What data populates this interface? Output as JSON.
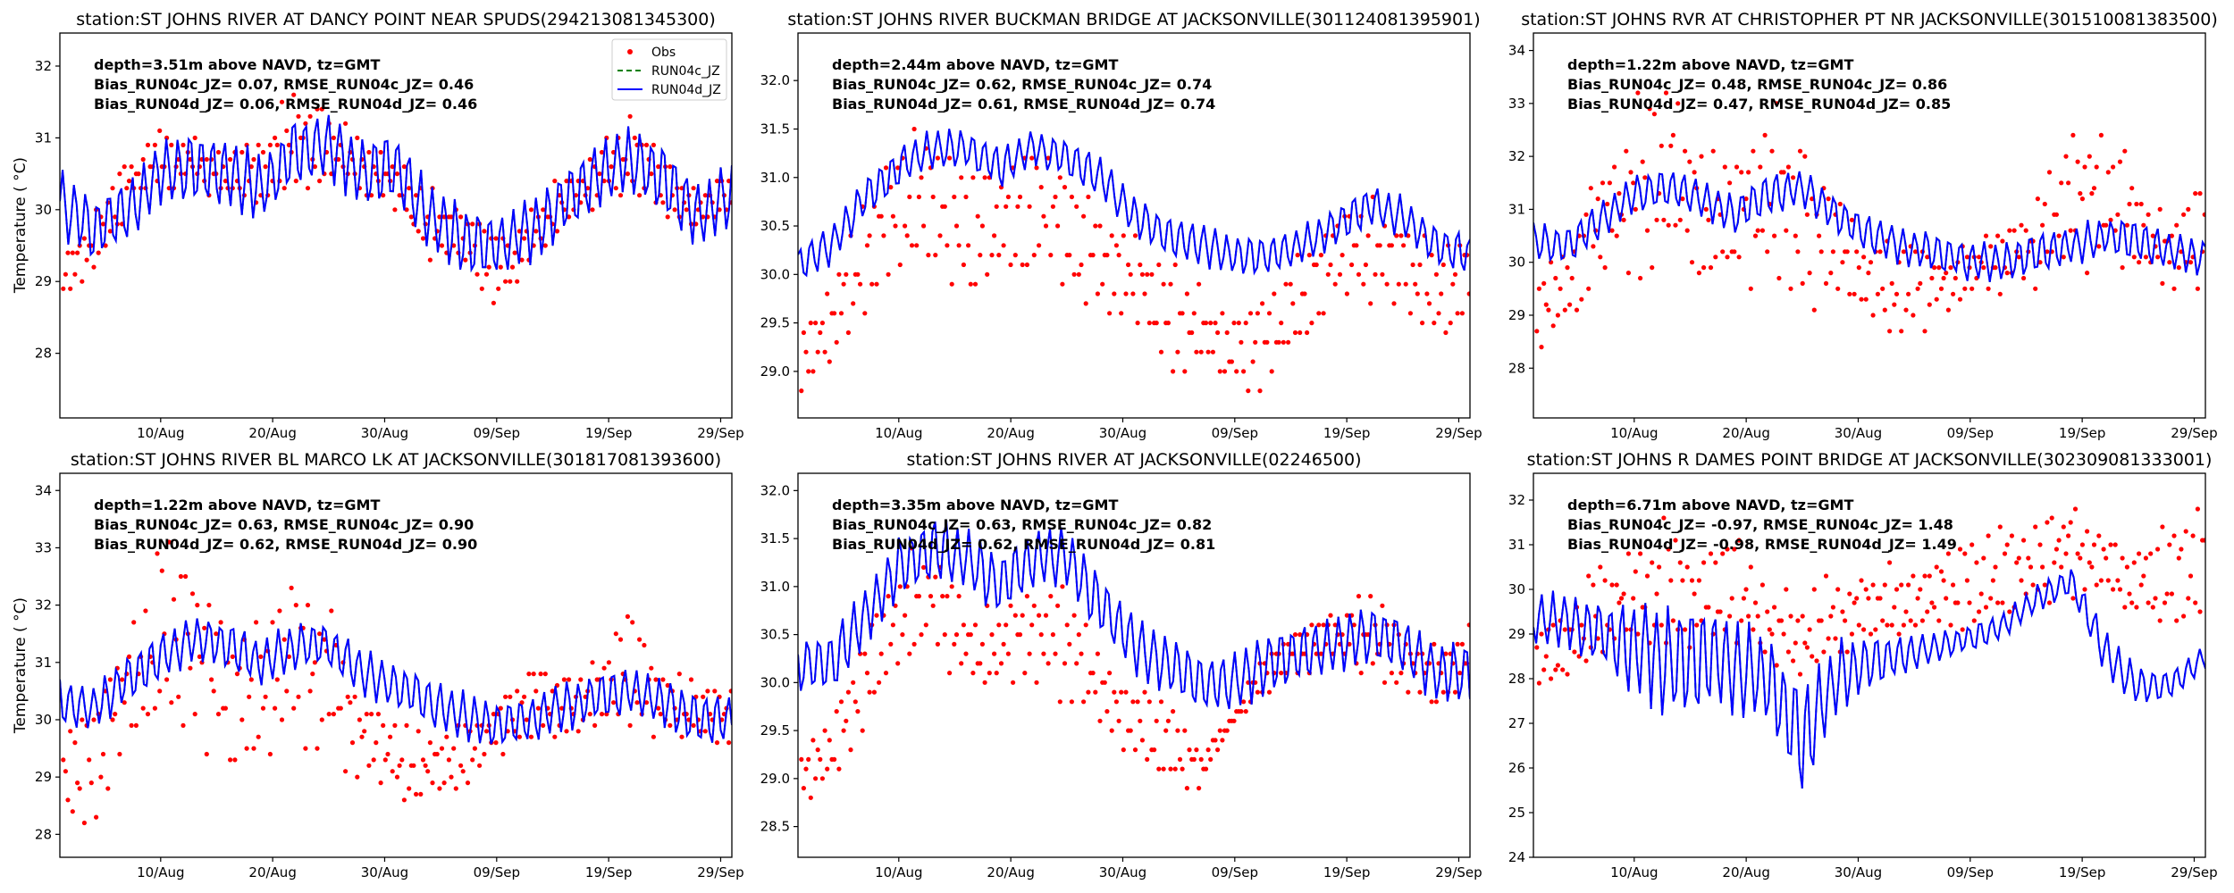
{
  "figure": {
    "x_tick_labels": [
      "10/Aug",
      "20/Aug",
      "30/Aug",
      "09/Sep",
      "19/Sep",
      "29/Sep"
    ],
    "x_tick_days": [
      9,
      19,
      29,
      39,
      49,
      59
    ],
    "x_range_days": [
      0,
      60
    ],
    "x_origin_date": "01/Aug",
    "ylabel": "Temperature ($^\\circ$C)",
    "ylabel_text": "Temperature ( °C)",
    "legend": [
      {
        "label": "Obs",
        "color": "#ff0000",
        "style": "dot"
      },
      {
        "label": "RUN04c_JZ",
        "color": "#008000",
        "style": "dashed"
      },
      {
        "label": "RUN04d_JZ",
        "color": "#0000ff",
        "style": "solid"
      }
    ]
  },
  "chart_data": [
    {
      "type": "line",
      "title": "station:ST JOHNS RIVER AT DANCY POINT NEAR SPUDS(294213081345300)",
      "xlabel": "",
      "ylabel": "Temperature ( °C)",
      "ylim": [
        27.1,
        32.46
      ],
      "yticks": [
        28,
        29,
        30,
        31,
        32
      ],
      "ytick_labels": [
        "28",
        "29",
        "30",
        "31",
        "32"
      ],
      "annotation": [
        "depth=3.51m above NAVD, tz=GMT",
        "Bias_RUN04c_JZ=  0.07, RMSE_RUN04c_JZ=  0.46",
        "Bias_RUN04d_JZ=  0.06, RMSE_RUN04d_JZ=  0.46"
      ],
      "legend_shown": true,
      "legend_position": "top-right",
      "series": [
        {
          "name": "RUN04d_JZ",
          "daily_mean_every_3_days": [
            30.1,
            29.7,
            30.0,
            30.5,
            30.6,
            30.5,
            30.3,
            30.8,
            30.9,
            30.5,
            30.6,
            29.9,
            29.6,
            29.5,
            29.7,
            30.1,
            30.5,
            30.7,
            30.4,
            29.9,
            30.2
          ],
          "tidal_amplitude": 0.45
        },
        {
          "name": "RUN04c_JZ",
          "same_as": "RUN04d_JZ"
        },
        {
          "name": "Obs",
          "daily_min_every_3_days": [
            28.7,
            29.1,
            29.9,
            30.2,
            30.3,
            30.0,
            30.1,
            30.3,
            30.3,
            30.2,
            29.9,
            29.3,
            29.2,
            28.6,
            29.2,
            29.6,
            30.1,
            30.2,
            29.8,
            29.6,
            29.9
          ],
          "daily_max_every_3_days": [
            29.4,
            29.9,
            30.8,
            31.2,
            31.0,
            30.8,
            31.0,
            31.8,
            31.4,
            31.0,
            30.8,
            30.3,
            30.0,
            29.7,
            30.0,
            30.5,
            30.9,
            31.4,
            30.8,
            30.4,
            30.6
          ]
        }
      ]
    },
    {
      "type": "line",
      "title": "station:ST JOHNS RIVER BUCKMAN BRIDGE AT JACKSONVILLE(301124081395901)",
      "xlabel": "",
      "ylabel": "",
      "ylim": [
        28.52,
        32.49
      ],
      "yticks": [
        29.0,
        29.5,
        30.0,
        30.5,
        31.0,
        31.5,
        32.0
      ],
      "ytick_labels": [
        "29.0",
        "29.5",
        "30.0",
        "30.5",
        "31.0",
        "31.5",
        "32.0"
      ],
      "annotation": [
        "depth=2.44m above NAVD, tz=GMT",
        "Bias_RUN04c_JZ=  0.62, RMSE_RUN04c_JZ=  0.74",
        "Bias_RUN04d_JZ=  0.61, RMSE_RUN04d_JZ=  0.74"
      ],
      "legend_shown": false,
      "series": [
        {
          "name": "RUN04d_JZ",
          "daily_mean_every_3_days": [
            30.1,
            30.3,
            30.8,
            31.1,
            31.3,
            31.3,
            31.1,
            31.3,
            31.2,
            31.0,
            30.6,
            30.4,
            30.3,
            30.2,
            30.2,
            30.3,
            30.5,
            30.7,
            30.6,
            30.3,
            30.2
          ],
          "tidal_amplitude": 0.2
        },
        {
          "name": "RUN04c_JZ",
          "same_as": "RUN04d_JZ"
        },
        {
          "name": "Obs",
          "daily_min_every_3_days": [
            28.7,
            29.0,
            29.6,
            30.0,
            30.0,
            29.6,
            30.0,
            30.0,
            29.8,
            29.6,
            29.4,
            29.0,
            28.9,
            28.8,
            28.8,
            29.2,
            29.8,
            29.6,
            29.6,
            29.3,
            29.5
          ],
          "daily_max_every_3_days": [
            29.4,
            30.0,
            30.8,
            31.4,
            31.6,
            31.2,
            31.1,
            31.6,
            31.2,
            30.8,
            30.4,
            30.2,
            29.9,
            29.7,
            29.9,
            30.3,
            30.6,
            30.8,
            30.6,
            30.3,
            30.5
          ]
        }
      ]
    },
    {
      "type": "line",
      "title": "station:ST JOHNS RVR AT CHRISTOPHER PT NR JACKSONVILLE(301510081383500)",
      "xlabel": "",
      "ylabel": "",
      "ylim": [
        27.06,
        34.33
      ],
      "yticks": [
        28,
        29,
        30,
        31,
        32,
        33,
        34
      ],
      "ytick_labels": [
        "28",
        "29",
        "30",
        "31",
        "32",
        "33",
        "34"
      ],
      "annotation": [
        "depth=1.22m above NAVD, tz=GMT",
        "Bias_RUN04c_JZ=  0.48, RMSE_RUN04c_JZ=  0.86",
        "Bias_RUN04d_JZ=  0.47, RMSE_RUN04d_JZ=  0.85"
      ],
      "legend_shown": false,
      "series": [
        {
          "name": "RUN04d_JZ",
          "daily_mean_every_3_days": [
            30.4,
            30.3,
            30.8,
            31.3,
            31.4,
            31.2,
            30.9,
            31.3,
            31.4,
            30.9,
            30.5,
            30.3,
            30.2,
            30.0,
            30.0,
            30.2,
            30.3,
            30.5,
            30.4,
            30.2,
            30.1
          ],
          "tidal_amplitude": 0.35
        },
        {
          "name": "RUN04c_JZ",
          "same_as": "RUN04d_JZ"
        },
        {
          "name": "Obs",
          "daily_min_every_3_days": [
            28.2,
            28.6,
            29.7,
            29.8,
            29.8,
            29.6,
            29.6,
            29.5,
            29.2,
            29.0,
            28.7,
            28.5,
            28.9,
            29.3,
            29.4,
            29.5,
            29.7,
            29.8,
            29.7,
            29.4,
            29.6
          ],
          "daily_max_every_3_days": [
            30.0,
            30.5,
            31.8,
            33.2,
            33.6,
            32.2,
            32.0,
            33.2,
            32.6,
            31.2,
            30.6,
            30.4,
            30.3,
            30.4,
            30.8,
            31.4,
            32.6,
            33.0,
            31.6,
            31.0,
            31.8
          ]
        }
      ]
    },
    {
      "type": "line",
      "title": "station:ST JOHNS RIVER BL MARCO LK AT JACKSONVILLE(301817081393600)",
      "xlabel": "",
      "ylabel": "Temperature ( °C)",
      "ylim": [
        27.6,
        34.3
      ],
      "yticks": [
        28,
        29,
        30,
        31,
        32,
        33,
        34
      ],
      "ytick_labels": [
        "28",
        "29",
        "30",
        "31",
        "32",
        "33",
        "34"
      ],
      "annotation": [
        "depth=1.22m above NAVD, tz=GMT",
        "Bias_RUN04c_JZ=  0.63, RMSE_RUN04c_JZ=  0.90",
        "Bias_RUN04d_JZ=  0.62, RMSE_RUN04d_JZ=  0.90"
      ],
      "legend_shown": false,
      "series": [
        {
          "name": "RUN04d_JZ",
          "daily_mean_every_3_days": [
            30.3,
            30.2,
            30.7,
            31.1,
            31.4,
            31.3,
            31.0,
            31.3,
            31.3,
            30.8,
            30.6,
            30.3,
            30.1,
            29.9,
            30.0,
            30.2,
            30.4,
            30.5,
            30.3,
            30.0,
            30.0
          ],
          "tidal_amplitude": 0.4
        },
        {
          "name": "RUN04c_JZ",
          "same_as": "RUN04d_JZ"
        },
        {
          "name": "Obs",
          "daily_min_every_3_days": [
            28.4,
            28.0,
            29.3,
            29.8,
            29.6,
            29.2,
            29.0,
            29.5,
            29.2,
            28.9,
            28.6,
            28.5,
            28.8,
            29.3,
            29.6,
            29.6,
            29.7,
            29.8,
            29.6,
            29.5,
            29.5
          ],
          "daily_max_every_3_days": [
            29.8,
            30.4,
            31.6,
            33.2,
            32.8,
            31.6,
            31.8,
            33.0,
            32.4,
            30.6,
            29.9,
            29.8,
            30.1,
            30.4,
            31.2,
            30.8,
            31.1,
            32.0,
            31.0,
            30.7,
            30.6
          ]
        }
      ]
    },
    {
      "type": "line",
      "title": "station:ST JOHNS RIVER AT JACKSONVILLE(02246500)",
      "xlabel": "",
      "ylabel": "",
      "ylim": [
        28.18,
        32.18
      ],
      "yticks": [
        28.5,
        29.0,
        29.5,
        30.0,
        30.5,
        31.0,
        31.5,
        32.0
      ],
      "ytick_labels": [
        "28.5",
        "29.0",
        "29.5",
        "30.0",
        "30.5",
        "31.0",
        "31.5",
        "32.0"
      ],
      "annotation": [
        "depth=3.35m above NAVD, tz=GMT",
        "Bias_RUN04c_JZ=  0.63, RMSE_RUN04c_JZ=  0.82",
        "Bias_RUN04d_JZ=  0.62, RMSE_RUN04d_JZ=  0.81"
      ],
      "legend_shown": false,
      "series": [
        {
          "name": "RUN04d_JZ",
          "daily_mean_every_3_days": [
            30.2,
            30.2,
            30.7,
            31.2,
            31.4,
            31.3,
            31.0,
            31.3,
            31.3,
            30.8,
            30.4,
            30.2,
            30.0,
            30.0,
            30.2,
            30.3,
            30.4,
            30.5,
            30.4,
            30.1,
            30.1
          ],
          "tidal_amplitude": 0.3
        },
        {
          "name": "RUN04c_JZ",
          "same_as": "RUN04d_JZ"
        },
        {
          "name": "Obs",
          "daily_min_every_3_days": [
            28.7,
            29.0,
            29.6,
            30.0,
            30.4,
            29.8,
            29.9,
            30.0,
            29.8,
            29.5,
            29.2,
            28.9,
            28.9,
            29.6,
            29.9,
            30.1,
            30.2,
            30.0,
            29.9,
            29.8,
            29.8
          ],
          "daily_max_every_3_days": [
            29.3,
            29.6,
            30.5,
            31.3,
            31.5,
            30.9,
            30.8,
            31.2,
            31.0,
            30.4,
            30.0,
            29.8,
            29.4,
            29.7,
            30.4,
            30.7,
            30.8,
            31.0,
            30.6,
            30.4,
            30.6
          ]
        }
      ]
    },
    {
      "type": "line",
      "title": "station:ST JOHNS R DAMES POINT BRIDGE AT JACKSONVILLE(302309081333001)",
      "xlabel": "",
      "ylabel": "",
      "ylim": [
        24.0,
        32.6
      ],
      "yticks": [
        24,
        25,
        26,
        27,
        28,
        29,
        30,
        31,
        32
      ],
      "ytick_labels": [
        "24",
        "25",
        "26",
        "27",
        "28",
        "29",
        "30",
        "31",
        "32"
      ],
      "annotation": [
        "depth=6.71m above NAVD, tz=GMT",
        "Bias_RUN04c_JZ= -0.97, RMSE_RUN04c_JZ=  1.48",
        "Bias_RUN04d_JZ= -0.98, RMSE_RUN04d_JZ=  1.49"
      ],
      "legend_shown": false,
      "series": [
        {
          "name": "RUN04d_JZ",
          "daily_mean_every_3_days": [
            29.3,
            29.3,
            29.0,
            28.7,
            28.4,
            28.5,
            28.3,
            28.0,
            26.5,
            28.0,
            28.4,
            28.5,
            28.7,
            28.9,
            29.2,
            29.8,
            30.2,
            28.6,
            27.8,
            27.9,
            28.5
          ],
          "tidal_amplitude_every_3_days": [
            0.6,
            0.6,
            0.7,
            1.0,
            1.2,
            1.2,
            1.0,
            1.0,
            1.2,
            0.8,
            0.6,
            0.4,
            0.3,
            0.3,
            0.3,
            0.3,
            0.3,
            0.5,
            0.4,
            0.3,
            0.3
          ]
        },
        {
          "name": "RUN04c_JZ",
          "same_as": "RUN04d_JZ"
        },
        {
          "name": "Obs",
          "daily_min_every_3_days": [
            27.3,
            27.6,
            28.6,
            28.7,
            28.4,
            28.7,
            28.5,
            28.3,
            27.7,
            28.1,
            28.6,
            28.8,
            28.9,
            29.1,
            29.3,
            29.6,
            29.8,
            29.6,
            29.3,
            29.0,
            29.0
          ],
          "daily_max_every_3_days": [
            29.0,
            29.8,
            30.6,
            31.0,
            31.6,
            30.8,
            31.8,
            30.2,
            30.0,
            30.4,
            30.6,
            30.6,
            30.8,
            31.2,
            31.5,
            31.6,
            32.2,
            31.4,
            31.0,
            31.6,
            32.0
          ]
        }
      ]
    }
  ]
}
